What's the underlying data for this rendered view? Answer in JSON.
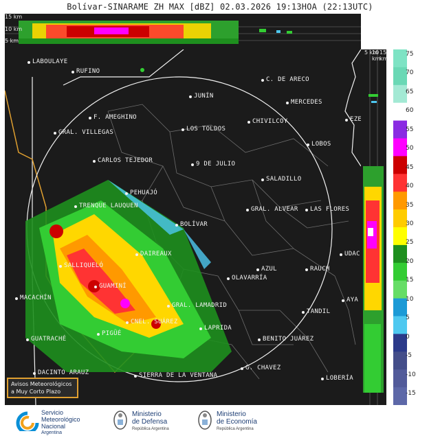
{
  "title": "Bolívar-SINARAME ZH MAX [dBZ] 02.03.2026 19:13HOA (22:13UTC)",
  "top_cross_section": {
    "labels": [
      "15 km",
      "10 km",
      "5 km"
    ]
  },
  "right_cross_section": {
    "labels": [
      "5 km",
      "10 km",
      "15 km"
    ]
  },
  "map": {
    "cities": [
      {
        "name": "LABOULAYE"
      },
      {
        "name": "RUFINO"
      },
      {
        "name": "C. DE ARECO"
      },
      {
        "name": "JUNÍN"
      },
      {
        "name": "MERCEDES"
      },
      {
        "name": "F. AMEGHINO"
      },
      {
        "name": "CHIVILCOY"
      },
      {
        "name": "LOS TOLDOS"
      },
      {
        "name": "GRAL. VILLEGAS"
      },
      {
        "name": "LOBOS"
      },
      {
        "name": "CARLOS TEJEDOR"
      },
      {
        "name": "9 DE JULIO"
      },
      {
        "name": "SALADILLO"
      },
      {
        "name": "PEHUAJÓ"
      },
      {
        "name": "TRENQUE LAUQUEN"
      },
      {
        "name": "GRAL. ALVEAR"
      },
      {
        "name": "LAS FLORES"
      },
      {
        "name": "BOLÍVAR"
      },
      {
        "name": "DAIREAUX"
      },
      {
        "name": "SALLIQUELÓ"
      },
      {
        "name": "AZUL"
      },
      {
        "name": "RAUCH"
      },
      {
        "name": "OLAVARRÍA"
      },
      {
        "name": "GUAMINÍ"
      },
      {
        "name": "MACACHÍN"
      },
      {
        "name": "GRAL. LAMADRID"
      },
      {
        "name": "TANDIL"
      },
      {
        "name": "CNEL. SUÁREZ"
      },
      {
        "name": "LAPRIDA"
      },
      {
        "name": "PIGÜÉ"
      },
      {
        "name": "BENITO JUÁREZ"
      },
      {
        "name": "GUATRACHÉ"
      },
      {
        "name": "G. CHAVEZ"
      },
      {
        "name": "DACINTO ARAUZ"
      },
      {
        "name": "SIERRA DE LA VENTANA"
      },
      {
        "name": "LOBERÍA"
      },
      {
        "name": "UDAC"
      },
      {
        "name": "AYA"
      },
      {
        "name": "EZE"
      }
    ],
    "avisos": {
      "line1": "Avisos Meteorológicos",
      "line2": "a Muy Corto Plazo"
    }
  },
  "colorbar": {
    "ticks": [
      "75",
      "70",
      "65",
      "60",
      "55",
      "50",
      "45",
      "40",
      "35",
      "30",
      "25",
      "20",
      "15",
      "10",
      "5",
      "0",
      "-5",
      "-10",
      "-15"
    ],
    "colors": [
      "#7ee3c4",
      "#6ad8b5",
      "#a3e9d4",
      "#ffffff",
      "#8a2be2",
      "#ff00ff",
      "#cc0000",
      "#ff3333",
      "#ff9900",
      "#ffcc00",
      "#ffff00",
      "#1e8f1e",
      "#33cc33",
      "#66dd66",
      "#1c9ad6",
      "#4ec8f0",
      "#2b3a8a",
      "#444e8a",
      "#525b9a",
      "#5d68a8"
    ]
  },
  "footer": {
    "smn": {
      "line1": "Servicio",
      "line2": "Meteorológico",
      "line3": "Nacional",
      "line4": "Argentina"
    },
    "defensa": {
      "line1": "Ministerio",
      "line2": "de Defensa",
      "line3": "República Argentina"
    },
    "economia": {
      "line1": "Ministerio",
      "line2": "de Economía",
      "line3": "República Argentina"
    }
  }
}
